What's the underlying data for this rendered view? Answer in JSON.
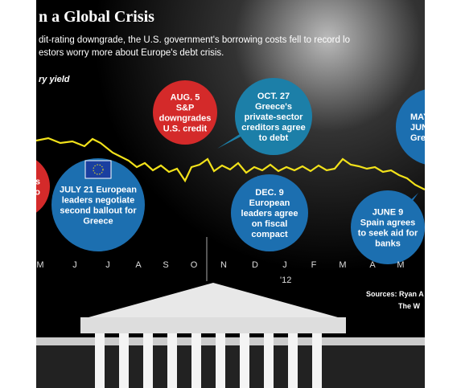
{
  "header": {
    "title": "n a Global Crisis",
    "subtitle": [
      "dit-rating downgrade, the U.S. government's borrowing costs fell to record lo",
      "estors worry more about Europe's debt crisis."
    ],
    "axis_label": "ry yield"
  },
  "annotations": [
    {
      "lines": [
        "AUG. 5",
        "S&P",
        "downgrades",
        "U.S. credit"
      ]
    },
    {
      "lines": [
        "OCT. 27",
        "Greece's",
        "private-sector",
        "creditors agree",
        "to debt"
      ]
    },
    {
      "lines": [
        "s",
        "to"
      ]
    },
    {
      "lines": [
        "JULY 21  European",
        "leaders negotiate",
        "second ballout for",
        "Greece"
      ]
    },
    {
      "lines": [
        "DEC. 9",
        "European",
        "leaders agree",
        "on fiscal",
        "compact"
      ]
    },
    {
      "lines": [
        "JUNE 9",
        "Spain agrees",
        "to seek aid for",
        "banks"
      ]
    },
    {
      "lines": [
        "MAY",
        "JUN",
        "Gre"
      ]
    }
  ],
  "months": [
    "M",
    "J",
    "J",
    "A",
    "S",
    "O",
    "N",
    "D",
    "J",
    "F",
    "M",
    "A",
    "M"
  ],
  "year_label": "'12",
  "sources": [
    "Sources: Ryan A",
    "The W"
  ]
}
